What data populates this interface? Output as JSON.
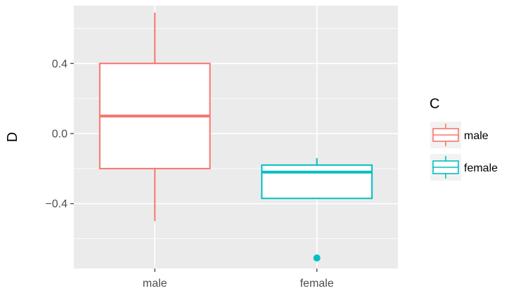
{
  "chart_data": {
    "type": "boxplot",
    "xlabel": "",
    "ylabel": "D",
    "ylim": [
      -0.77,
      0.73
    ],
    "y_ticks": [
      -0.4,
      0.0,
      0.4
    ],
    "y_tick_labels": [
      "−0.4",
      "0.0",
      "0.4"
    ],
    "categories": [
      "male",
      "female"
    ],
    "boxes": [
      {
        "category": "male",
        "color": "#F8766D",
        "whisker_low": -0.5,
        "q1": -0.2,
        "median": 0.1,
        "q3": 0.4,
        "whisker_high": 0.69,
        "outliers": []
      },
      {
        "category": "female",
        "color": "#00BFC4",
        "whisker_low": -0.37,
        "q1": -0.37,
        "median": -0.22,
        "q3": -0.18,
        "whisker_high": -0.14,
        "outliers": [
          -0.71
        ]
      }
    ],
    "legend": {
      "title": "C",
      "position": "right",
      "items": [
        {
          "label": "male",
          "color": "#F8766D"
        },
        {
          "label": "female",
          "color": "#00BFC4"
        }
      ]
    },
    "grid": true,
    "panel_background": "#EBEBEB"
  }
}
